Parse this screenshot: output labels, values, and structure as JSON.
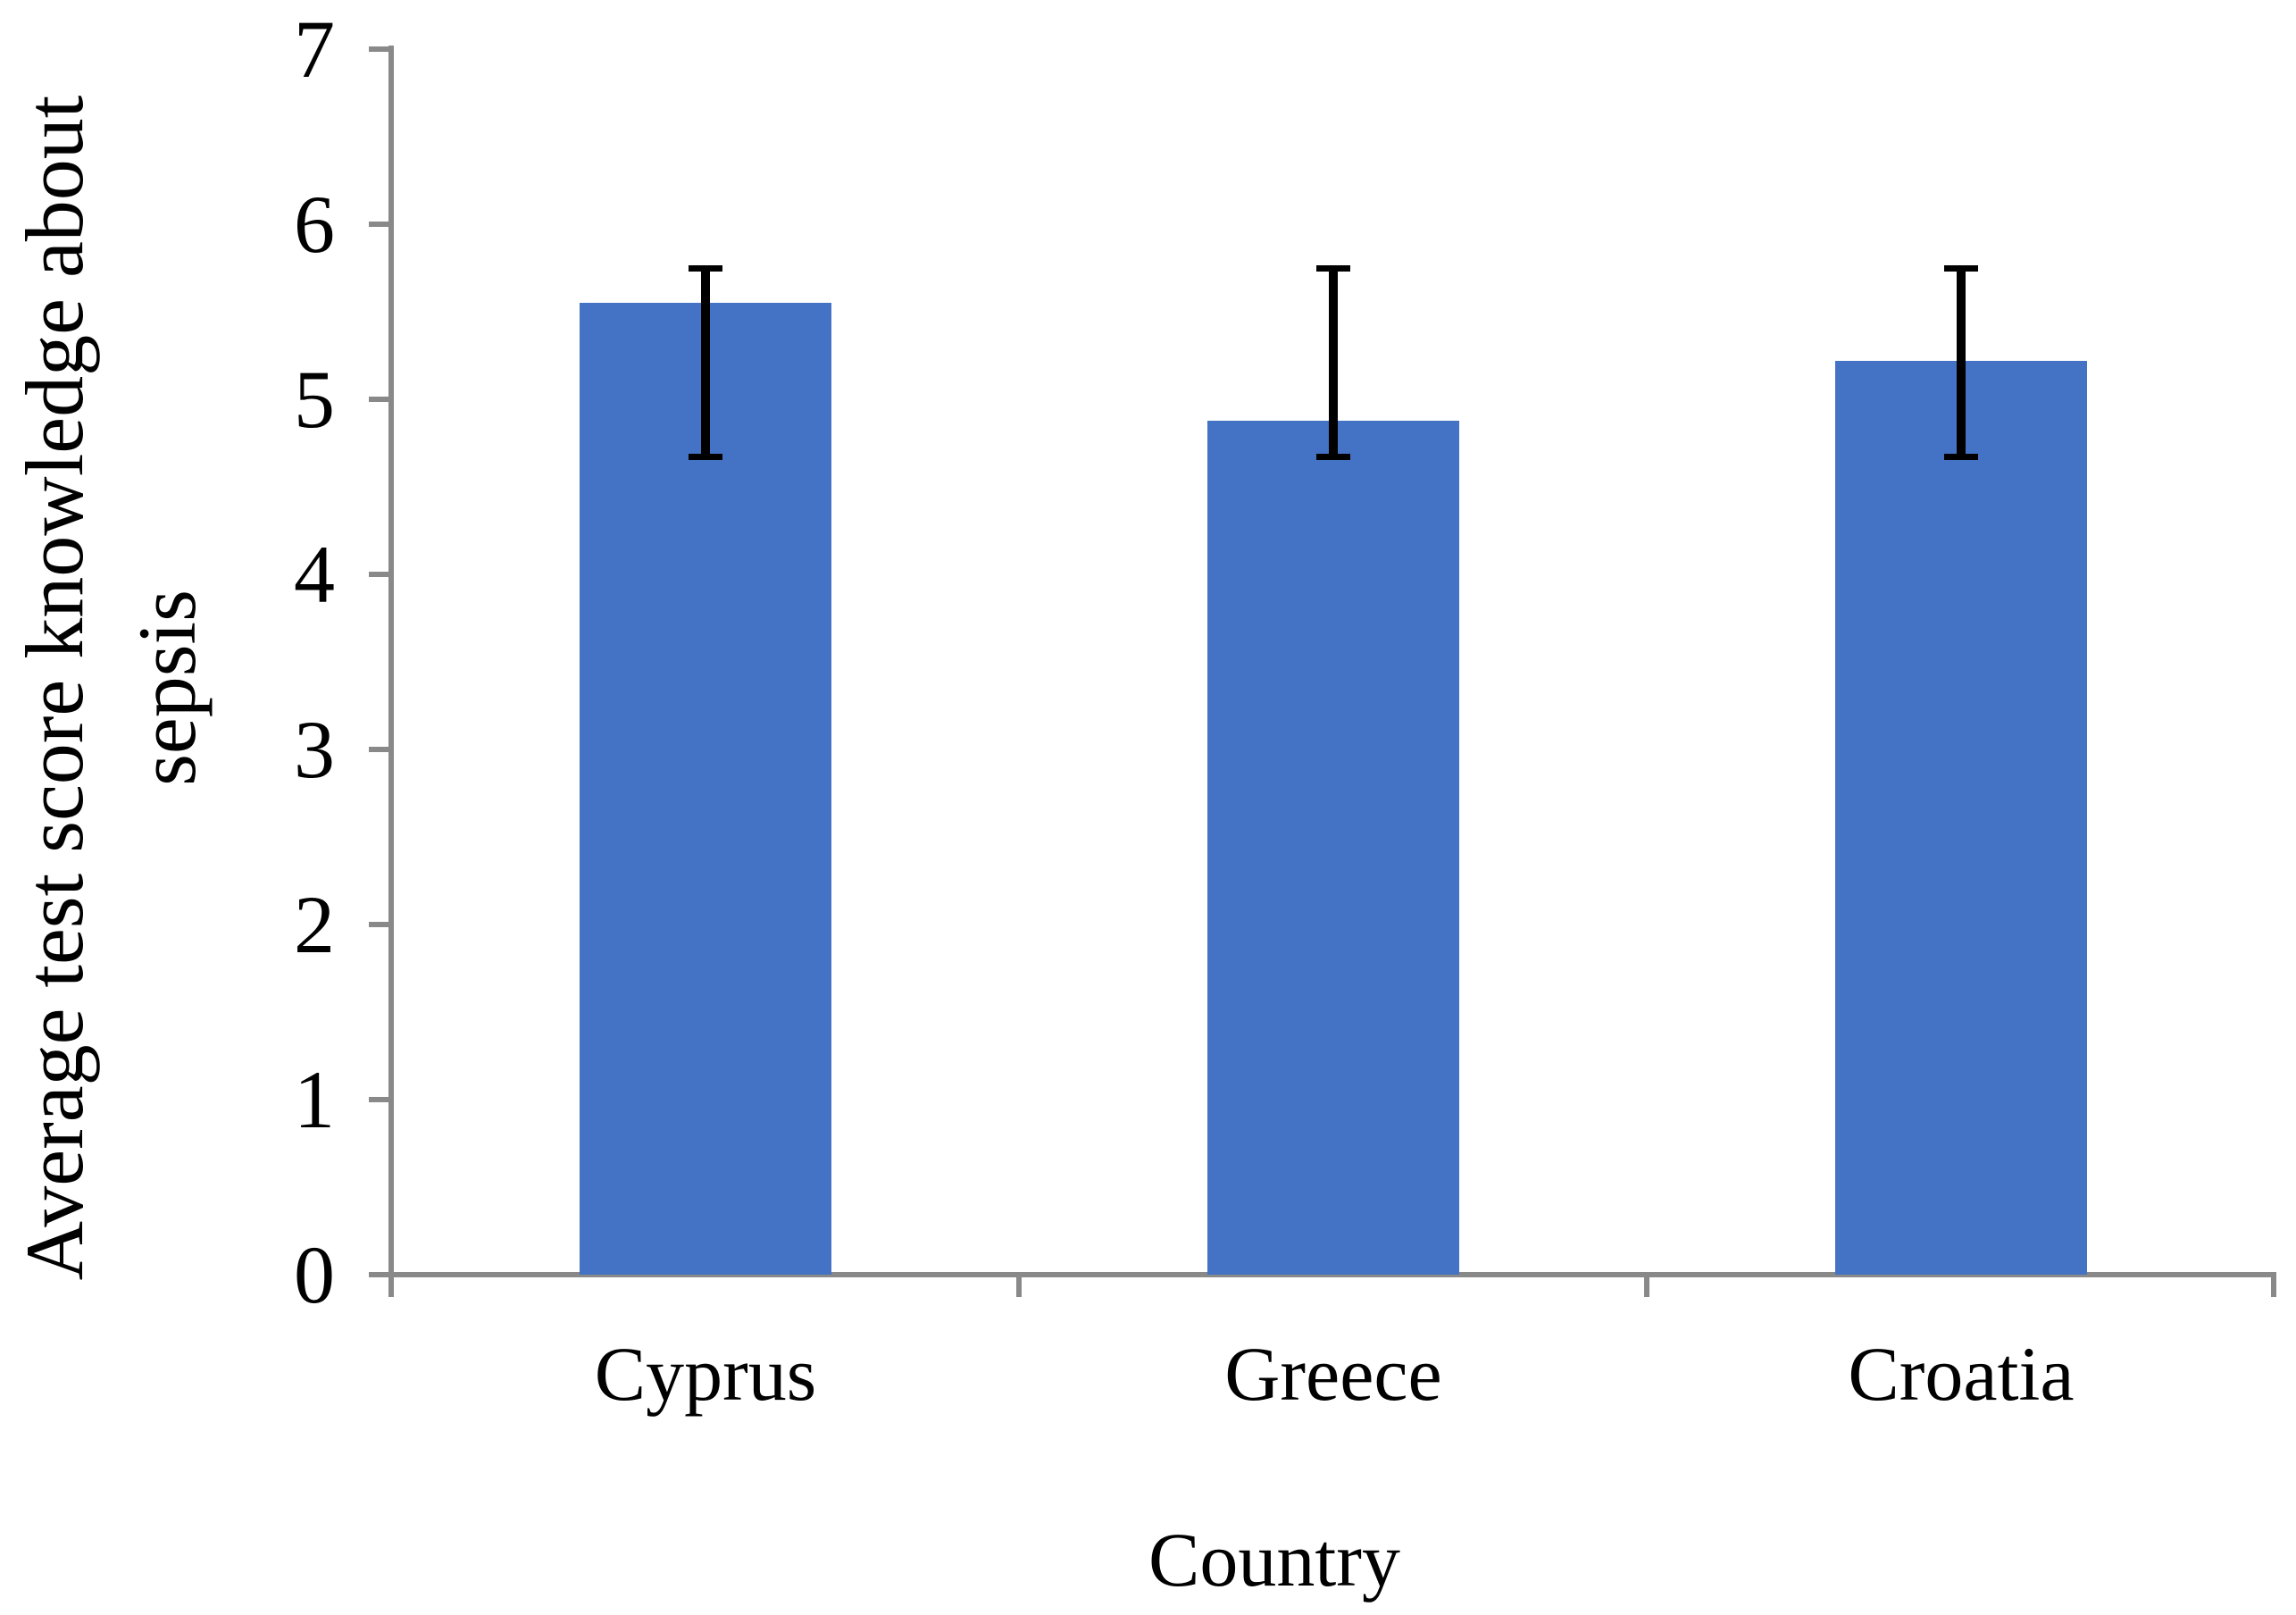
{
  "chart_data": {
    "type": "bar",
    "title": "",
    "categories": [
      "Cyprus",
      "Greece",
      "Croatia"
    ],
    "values": [
      5.55,
      4.88,
      5.22
    ],
    "error_bars": {
      "upper": [
        5.75,
        5.75,
        5.75
      ],
      "lower": [
        4.67,
        4.67,
        4.67
      ]
    },
    "xlabel": "Country",
    "ylabel": "Average test score knowledge about sepsis",
    "ylabel_lines": [
      "Average test score knowledge about",
      "sepsis"
    ],
    "ylim": [
      0,
      7
    ],
    "yticks": [
      0,
      1,
      2,
      3,
      4,
      5,
      6,
      7
    ],
    "grid": false,
    "legend": false,
    "colors": {
      "bar": "#4472C4",
      "axis": "#898989",
      "error": "#000000",
      "text": "#000000",
      "background": "#ffffff"
    }
  }
}
